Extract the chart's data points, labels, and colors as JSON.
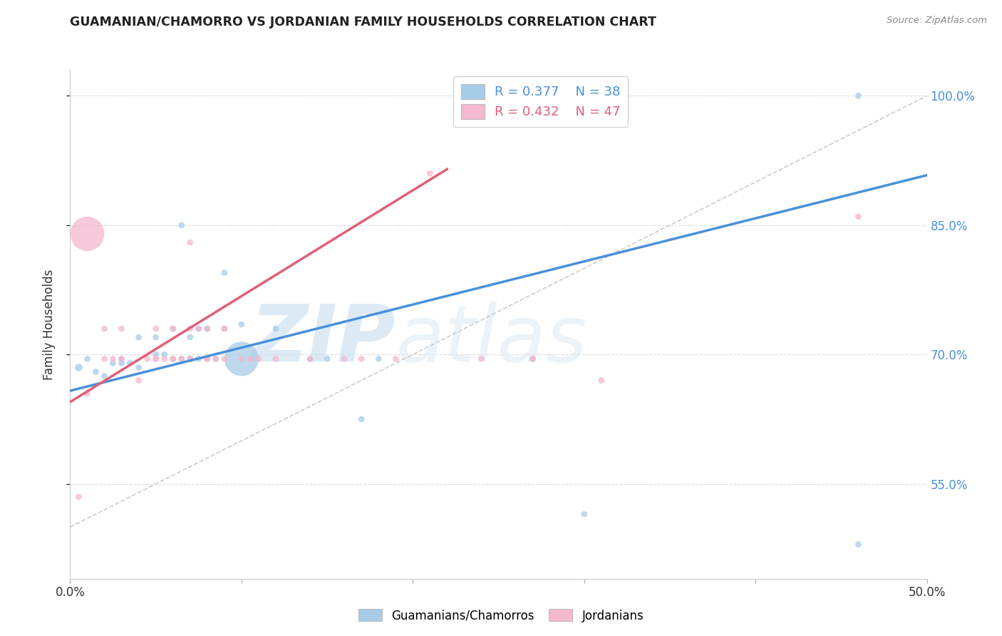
{
  "title": "GUAMANIAN/CHAMORRO VS JORDANIAN FAMILY HOUSEHOLDS CORRELATION CHART",
  "source": "Source: ZipAtlas.com",
  "ylabel": "Family Households",
  "xlim": [
    0.0,
    0.5
  ],
  "ylim": [
    0.44,
    1.03
  ],
  "yticks": [
    0.55,
    0.7,
    0.85,
    1.0
  ],
  "ytick_labels": [
    "55.0%",
    "70.0%",
    "85.0%",
    "100.0%"
  ],
  "blue_R": 0.377,
  "blue_N": 38,
  "pink_R": 0.432,
  "pink_N": 47,
  "blue_color": "#a8cce8",
  "pink_color": "#f5b8ce",
  "blue_line_color": "#4a90d9",
  "pink_line_color": "#e0607a",
  "watermark_zip": "ZIP",
  "watermark_atlas": "atlas",
  "blue_scatter_x": [
    0.005,
    0.01,
    0.015,
    0.02,
    0.025,
    0.03,
    0.03,
    0.035,
    0.04,
    0.04,
    0.05,
    0.05,
    0.055,
    0.06,
    0.06,
    0.065,
    0.065,
    0.07,
    0.07,
    0.07,
    0.075,
    0.075,
    0.08,
    0.08,
    0.085,
    0.09,
    0.09,
    0.1,
    0.1,
    0.12,
    0.14,
    0.15,
    0.17,
    0.18,
    0.27,
    0.3,
    0.46,
    0.46
  ],
  "blue_scatter_y": [
    0.685,
    0.695,
    0.68,
    0.675,
    0.69,
    0.69,
    0.695,
    0.69,
    0.685,
    0.72,
    0.7,
    0.72,
    0.7,
    0.695,
    0.73,
    0.695,
    0.85,
    0.695,
    0.72,
    0.695,
    0.695,
    0.73,
    0.695,
    0.73,
    0.695,
    0.73,
    0.795,
    0.695,
    0.735,
    0.73,
    0.695,
    0.695,
    0.625,
    0.695,
    0.695,
    0.515,
    0.48,
    1.0
  ],
  "blue_scatter_size": [
    60,
    40,
    40,
    40,
    40,
    40,
    40,
    40,
    40,
    40,
    40,
    40,
    40,
    40,
    40,
    40,
    40,
    40,
    40,
    40,
    40,
    40,
    40,
    40,
    40,
    40,
    40,
    1200,
    40,
    40,
    40,
    40,
    40,
    40,
    40,
    40,
    40,
    40
  ],
  "pink_scatter_x": [
    0.005,
    0.01,
    0.01,
    0.02,
    0.02,
    0.025,
    0.03,
    0.03,
    0.04,
    0.045,
    0.05,
    0.05,
    0.05,
    0.055,
    0.06,
    0.06,
    0.06,
    0.065,
    0.07,
    0.07,
    0.07,
    0.07,
    0.075,
    0.08,
    0.08,
    0.08,
    0.08,
    0.085,
    0.09,
    0.09,
    0.1,
    0.105,
    0.11,
    0.12,
    0.14,
    0.16,
    0.17,
    0.19,
    0.21,
    0.24,
    0.27,
    0.31,
    0.46
  ],
  "pink_scatter_y": [
    0.535,
    0.655,
    0.84,
    0.695,
    0.73,
    0.695,
    0.695,
    0.73,
    0.67,
    0.695,
    0.695,
    0.73,
    0.695,
    0.695,
    0.695,
    0.695,
    0.73,
    0.695,
    0.695,
    0.73,
    0.695,
    0.83,
    0.73,
    0.695,
    0.695,
    0.695,
    0.73,
    0.695,
    0.695,
    0.73,
    0.695,
    0.695,
    0.695,
    0.695,
    0.695,
    0.695,
    0.695,
    0.695,
    0.91,
    0.695,
    0.695,
    0.67,
    0.86
  ],
  "pink_scatter_size": [
    40,
    40,
    1200,
    40,
    40,
    40,
    40,
    40,
    40,
    40,
    40,
    40,
    40,
    40,
    40,
    40,
    40,
    40,
    40,
    40,
    40,
    40,
    40,
    40,
    40,
    40,
    40,
    40,
    40,
    40,
    40,
    40,
    40,
    40,
    40,
    40,
    40,
    40,
    40,
    40,
    40,
    40,
    40
  ],
  "blue_trend_x": [
    0.0,
    0.5
  ],
  "blue_trend_y": [
    0.658,
    0.908
  ],
  "pink_trend_x": [
    0.0,
    0.22
  ],
  "pink_trend_y": [
    0.645,
    0.915
  ],
  "identity_line_x": [
    0.0,
    0.5
  ],
  "identity_line_y": [
    0.5,
    1.0
  ]
}
